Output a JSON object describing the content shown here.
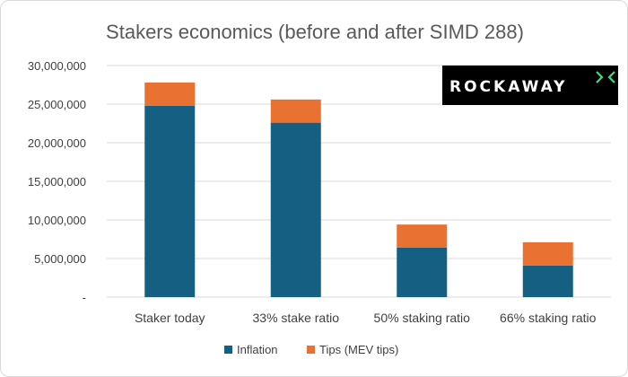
{
  "chart_data": {
    "type": "bar",
    "stacked": true,
    "title": "Stakers economics (before and after SIMD 288)",
    "categories": [
      "Staker today",
      "33% stake ratio",
      "50% staking ratio",
      "66% staking ratio"
    ],
    "series": [
      {
        "name": "Inflation",
        "values": [
          24800000,
          22600000,
          6400000,
          4100000
        ],
        "color": "#156082"
      },
      {
        "name": "Tips (MEV tips)",
        "values": [
          3000000,
          3000000,
          3000000,
          3000000
        ],
        "color": "#e97132"
      }
    ],
    "ylim": [
      0,
      30000000
    ],
    "yticks": [
      0,
      5000000,
      10000000,
      15000000,
      20000000,
      25000000,
      30000000
    ],
    "ytick_labels": [
      "-",
      "5,000,000",
      "10,000,000",
      "15,000,000",
      "20,000,000",
      "25,000,000",
      "30,000,000"
    ],
    "grid": true,
    "legend_position": "bottom"
  },
  "logo": {
    "text": "ROCKAWAY",
    "background": "#000000",
    "accent": "#3ddc84"
  }
}
